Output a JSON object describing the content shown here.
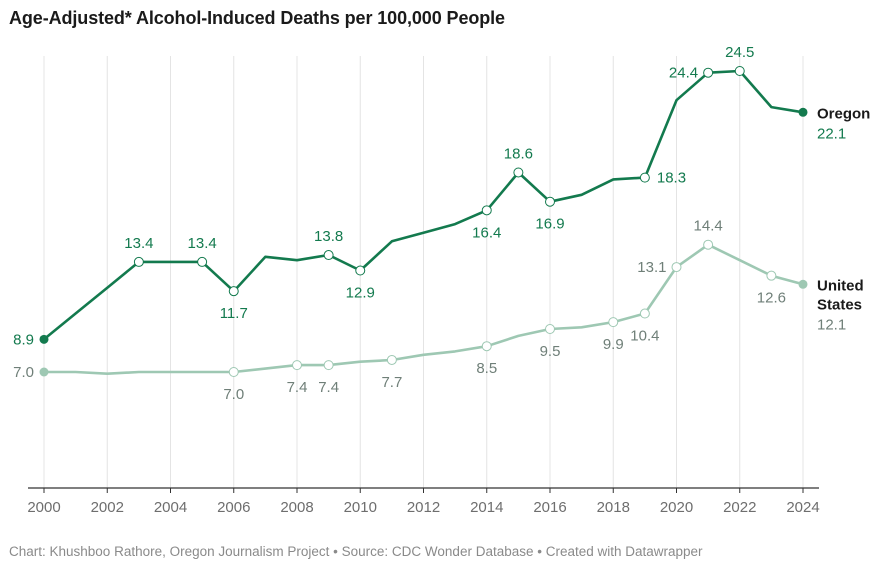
{
  "title": "Age-Adjusted* Alcohol-Induced Deaths per 100,000 People",
  "footer": "Chart: Khushboo Rathore, Oregon Journalism Project • Source: CDC Wonder Database • Created with Datawrapper",
  "colors": {
    "oregon": "#137a4e",
    "us": "#9ec8b3",
    "grid": "#e4e4e4",
    "axis": "#333333"
  },
  "chart_data": {
    "type": "line",
    "title": "Age-Adjusted* Alcohol-Induced Deaths per 100,000 People",
    "xlabel": "",
    "ylabel": "",
    "x": [
      2000,
      2001,
      2002,
      2003,
      2004,
      2005,
      2006,
      2007,
      2008,
      2009,
      2010,
      2011,
      2012,
      2013,
      2014,
      2015,
      2016,
      2017,
      2018,
      2019,
      2020,
      2021,
      2022,
      2023,
      2024
    ],
    "x_ticks": [
      2000,
      2002,
      2004,
      2006,
      2008,
      2010,
      2012,
      2014,
      2016,
      2018,
      2020,
      2022,
      2024
    ],
    "xlim": [
      2000,
      2024
    ],
    "ylim": [
      3,
      28
    ],
    "grid": "vertical",
    "series": [
      {
        "name": "Oregon",
        "values": [
          8.9,
          10.4,
          11.9,
          13.4,
          13.4,
          13.4,
          11.7,
          13.7,
          13.5,
          13.8,
          12.9,
          14.6,
          15.1,
          15.6,
          16.4,
          18.6,
          16.9,
          17.3,
          18.2,
          18.3,
          22.8,
          24.4,
          24.5,
          22.4,
          22.1
        ],
        "labeled": [
          {
            "x": 2000,
            "label": "8.9",
            "pos": "left"
          },
          {
            "x": 2003,
            "label": "13.4",
            "pos": "above"
          },
          {
            "x": 2005,
            "label": "13.4",
            "pos": "above"
          },
          {
            "x": 2006,
            "label": "11.7",
            "pos": "below"
          },
          {
            "x": 2009,
            "label": "13.8",
            "pos": "above"
          },
          {
            "x": 2010,
            "label": "12.9",
            "pos": "below"
          },
          {
            "x": 2014,
            "label": "16.4",
            "pos": "below"
          },
          {
            "x": 2015,
            "label": "18.6",
            "pos": "above"
          },
          {
            "x": 2016,
            "label": "16.9",
            "pos": "below"
          },
          {
            "x": 2019,
            "label": "18.3",
            "pos": "right"
          },
          {
            "x": 2021,
            "label": "24.4",
            "pos": "left"
          },
          {
            "x": 2022,
            "label": "24.5",
            "pos": "above"
          }
        ],
        "end_label": {
          "name": "Oregon",
          "value": "22.1"
        }
      },
      {
        "name": "United States",
        "name_lines": [
          "United",
          "States"
        ],
        "values": [
          7.0,
          7.0,
          6.9,
          7.0,
          7.0,
          7.0,
          7.0,
          7.2,
          7.4,
          7.4,
          7.6,
          7.7,
          8.0,
          8.2,
          8.5,
          9.1,
          9.5,
          9.6,
          9.9,
          10.4,
          13.1,
          14.4,
          13.5,
          12.6,
          12.1
        ],
        "labeled": [
          {
            "x": 2000,
            "label": "7.0",
            "pos": "left"
          },
          {
            "x": 2006,
            "label": "7.0",
            "pos": "below"
          },
          {
            "x": 2008,
            "label": "7.4",
            "pos": "below"
          },
          {
            "x": 2009,
            "label": "7.4",
            "pos": "below"
          },
          {
            "x": 2011,
            "label": "7.7",
            "pos": "below"
          },
          {
            "x": 2014,
            "label": "8.5",
            "pos": "below"
          },
          {
            "x": 2016,
            "label": "9.5",
            "pos": "below"
          },
          {
            "x": 2018,
            "label": "9.9",
            "pos": "below"
          },
          {
            "x": 2019,
            "label": "10.4",
            "pos": "below"
          },
          {
            "x": 2020,
            "label": "13.1",
            "pos": "left"
          },
          {
            "x": 2021,
            "label": "14.4",
            "pos": "above"
          },
          {
            "x": 2023,
            "label": "12.6",
            "pos": "below"
          }
        ],
        "end_label": {
          "name": "United States",
          "value": "12.1"
        }
      }
    ]
  }
}
